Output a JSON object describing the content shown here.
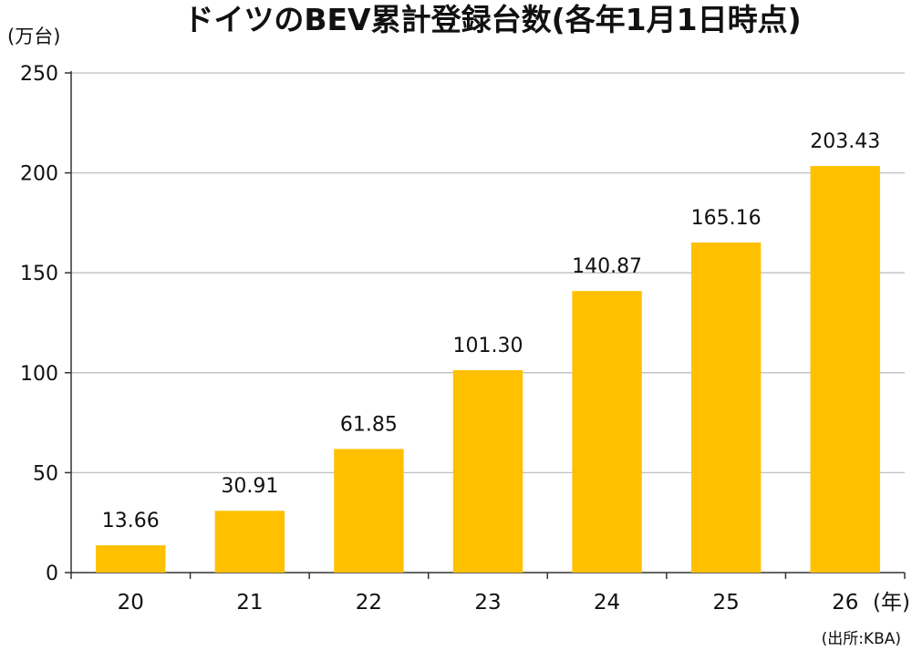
{
  "chart_data": {
    "type": "bar",
    "title": "ドイツのBEV累計登録台数(各年1月1日時点)",
    "ylabel": "(万台)",
    "xlabel": "(年)",
    "source": "(出所:KBA)",
    "categories": [
      "20",
      "21",
      "22",
      "23",
      "24",
      "25",
      "26"
    ],
    "series": [
      {
        "values": [
          13.66,
          30.91,
          61.85,
          101.3,
          140.87,
          165.16,
          203.43
        ]
      }
    ],
    "data_labels": [
      "13.66",
      "30.91",
      "61.85",
      "101.30",
      "140.87",
      "165.16",
      "203.43"
    ],
    "y_ticks": [
      "0",
      "50",
      "100",
      "150",
      "200",
      "250"
    ],
    "ylim": [
      0,
      250
    ],
    "grid": true,
    "bar_color": "#FFC000",
    "grid_color": "#bfbfbf",
    "axis_color": "#333333"
  }
}
